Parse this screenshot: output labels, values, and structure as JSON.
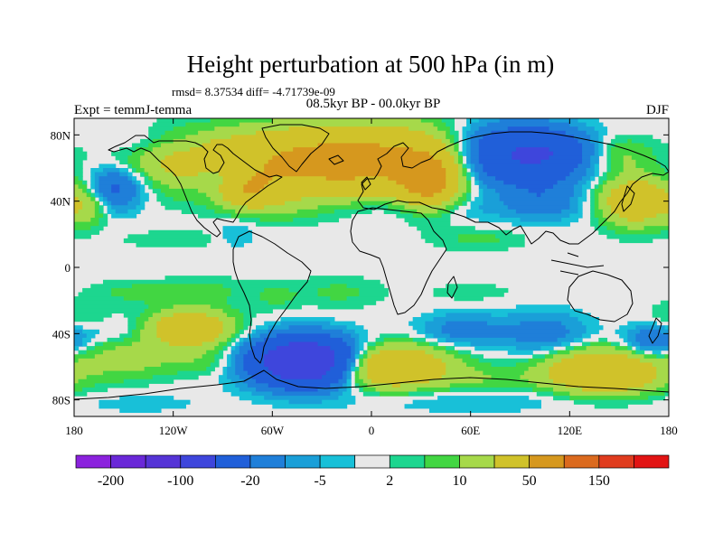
{
  "chart_data": {
    "type": "heatmap",
    "title": "Height perturbation at 500 hPa (in m)",
    "stats_line": "rmsd= 8.37534 diff= -4.71739e-09",
    "left_label": "Expt = temmJ-temma",
    "center_label": "08.5kyr BP - 00.0kyr BP",
    "right_label": "DJF",
    "projection": "cylindrical equidistant (lon -180..180, lat -90..90)",
    "xlim": [
      -180,
      180
    ],
    "ylim": [
      -90,
      90
    ],
    "x_ticks": [
      {
        "value": -180,
        "label": "180"
      },
      {
        "value": -120,
        "label": "120W"
      },
      {
        "value": -60,
        "label": "60W"
      },
      {
        "value": 0,
        "label": "0"
      },
      {
        "value": 60,
        "label": "60E"
      },
      {
        "value": 120,
        "label": "120E"
      },
      {
        "value": 180,
        "label": "180"
      }
    ],
    "y_ticks": [
      {
        "value": 80,
        "label": "80N"
      },
      {
        "value": 40,
        "label": "40N"
      },
      {
        "value": 0,
        "label": "0"
      },
      {
        "value": -40,
        "label": "40S"
      },
      {
        "value": -80,
        "label": "80S"
      }
    ],
    "levels": [
      -200,
      -150,
      -100,
      -50,
      -20,
      -10,
      -5,
      -2,
      2,
      5,
      10,
      20,
      50,
      100,
      150,
      200
    ],
    "colorbar_labels": [
      {
        "value": -200,
        "label": "-200"
      },
      {
        "value": -100,
        "label": "-100"
      },
      {
        "value": -20,
        "label": "-20"
      },
      {
        "value": -5,
        "label": "-5"
      },
      {
        "value": 2,
        "label": "2"
      },
      {
        "value": 10,
        "label": "10"
      },
      {
        "value": 50,
        "label": "50"
      },
      {
        "value": 150,
        "label": "150"
      }
    ],
    "colors": [
      "#8b22dd",
      "#6a28d8",
      "#5534d6",
      "#3e46dc",
      "#205fd9",
      "#1f7fd9",
      "#1a9fd8",
      "#18c0d8",
      "#e8e8e8",
      "#1dd68f",
      "#42d642",
      "#a6d94a",
      "#d0c22a",
      "#d6981e",
      "#db6a1e",
      "#e03c1e",
      "#e21414"
    ],
    "features": [
      {
        "lon": -45,
        "lat": 62,
        "amplitude": 35,
        "sx": 55,
        "sy": 14
      },
      {
        "lon": 5,
        "lat": 66,
        "amplitude": 40,
        "sx": 50,
        "sy": 14
      },
      {
        "lon": 35,
        "lat": 52,
        "amplitude": 55,
        "sx": 12,
        "sy": 11
      },
      {
        "lon": -75,
        "lat": 47,
        "amplitude": 35,
        "sx": 12,
        "sy": 7
      },
      {
        "lon": -112,
        "lat": 65,
        "amplitude": 12,
        "sx": 22,
        "sy": 9
      },
      {
        "lon": -110,
        "lat": 72,
        "amplitude": -5,
        "sx": 10,
        "sy": 6
      },
      {
        "lon": -90,
        "lat": 54,
        "amplitude": -18,
        "sx": 12,
        "sy": 7
      },
      {
        "lon": -155,
        "lat": 48,
        "amplitude": -25,
        "sx": 12,
        "sy": 9
      },
      {
        "lon": -172,
        "lat": 37,
        "amplitude": 15,
        "sx": 8,
        "sy": 8
      },
      {
        "lon": -140,
        "lat": 75,
        "amplitude": -6,
        "sx": 14,
        "sy": 6
      },
      {
        "lon": -55,
        "lat": 36,
        "amplitude": 7,
        "sx": 20,
        "sy": 6
      },
      {
        "lon": 40,
        "lat": 36,
        "amplitude": -6,
        "sx": 60,
        "sy": 6
      },
      {
        "lon": 85,
        "lat": 67,
        "amplitude": -60,
        "sx": 28,
        "sy": 13
      },
      {
        "lon": 112,
        "lat": 70,
        "amplitude": -15,
        "sx": 15,
        "sy": 8
      },
      {
        "lon": 105,
        "lat": 40,
        "amplitude": -12,
        "sx": 15,
        "sy": 8
      },
      {
        "lon": 150,
        "lat": 68,
        "amplitude": 12,
        "sx": 14,
        "sy": 8
      },
      {
        "lon": 160,
        "lat": 40,
        "amplitude": 40,
        "sx": 15,
        "sy": 10
      },
      {
        "lon": -82,
        "lat": 20,
        "amplitude": -6,
        "sx": 8,
        "sy": 6
      },
      {
        "lon": 65,
        "lat": 17,
        "amplitude": 6,
        "sx": 20,
        "sy": 5
      },
      {
        "lon": -120,
        "lat": 17,
        "amplitude": 4,
        "sx": 25,
        "sy": 4
      },
      {
        "lon": -145,
        "lat": -15,
        "amplitude": 6,
        "sx": 20,
        "sy": 5
      },
      {
        "lon": -100,
        "lat": -14,
        "amplitude": 6,
        "sx": 20,
        "sy": 6
      },
      {
        "lon": -20,
        "lat": -15,
        "amplitude": 6,
        "sx": 20,
        "sy": 7
      },
      {
        "lon": 60,
        "lat": -15,
        "amplitude": 4,
        "sx": 20,
        "sy": 4
      },
      {
        "lon": -58,
        "lat": -18,
        "amplitude": 5,
        "sx": 10,
        "sy": 6
      },
      {
        "lon": -110,
        "lat": -37,
        "amplitude": 40,
        "sx": 18,
        "sy": 8
      },
      {
        "lon": -155,
        "lat": -38,
        "amplitude": -6,
        "sx": 14,
        "sy": 6
      },
      {
        "lon": -175,
        "lat": -30,
        "amplitude": 6,
        "sx": 14,
        "sy": 6
      },
      {
        "lon": -40,
        "lat": -57,
        "amplitude": -100,
        "sx": 22,
        "sy": 10
      },
      {
        "lon": -150,
        "lat": -55,
        "amplitude": 14,
        "sx": 20,
        "sy": 9
      },
      {
        "lon": -100,
        "lat": -57,
        "amplitude": 8,
        "sx": 18,
        "sy": 6
      },
      {
        "lon": 55,
        "lat": -38,
        "amplitude": -14,
        "sx": 18,
        "sy": 7
      },
      {
        "lon": 105,
        "lat": -40,
        "amplitude": -15,
        "sx": 18,
        "sy": 9
      },
      {
        "lon": 170,
        "lat": -45,
        "amplitude": -20,
        "sx": 12,
        "sy": 7
      },
      {
        "lon": 10,
        "lat": -60,
        "amplitude": 50,
        "sx": 25,
        "sy": 9
      },
      {
        "lon": 140,
        "lat": -63,
        "amplitude": 50,
        "sx": 24,
        "sy": 9
      },
      {
        "lon": 70,
        "lat": -68,
        "amplitude": 8,
        "sx": 20,
        "sy": 6
      },
      {
        "lon": 60,
        "lat": -80,
        "amplitude": -6,
        "sx": 50,
        "sy": 5
      },
      {
        "lon": -140,
        "lat": -82,
        "amplitude": -4,
        "sx": 25,
        "sy": 4
      }
    ]
  }
}
